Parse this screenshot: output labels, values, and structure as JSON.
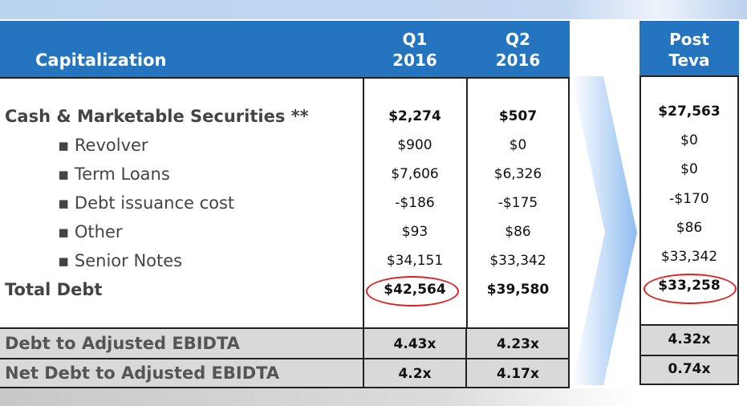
{
  "header": {
    "title": "Capitalization",
    "q1": [
      "Q1",
      "2016"
    ],
    "q2": [
      "Q2",
      "2016"
    ],
    "post": [
      "Post",
      "Teva"
    ]
  },
  "rows": [
    {
      "label": "Cash & Marketable Securities **",
      "q1": "$2,274",
      "q2": "$507",
      "post": "$27,563",
      "bold": true,
      "indent": false
    },
    {
      "label": "▪ Revolver",
      "q1": "$900",
      "q2": "$0",
      "post": "$0",
      "bold": false,
      "indent": true
    },
    {
      "label": "▪ Term Loans",
      "q1": "$7,606",
      "q2": "$6,326",
      "post": "$0",
      "bold": false,
      "indent": true
    },
    {
      "label": "▪ Debt issuance cost",
      "q1": "-$186",
      "q2": "-$175",
      "post": "-$170",
      "bold": false,
      "indent": true
    },
    {
      "label": "▪ Other",
      "q1": "$93",
      "q2": "$86",
      "post": "$86",
      "bold": false,
      "indent": true
    },
    {
      "label": "▪ Senior Notes",
      "q1": "$34,151",
      "q2": "$33,342",
      "post": "$33,342",
      "bold": false,
      "indent": true
    },
    {
      "label": "Total Debt",
      "q1": "$42,564",
      "q2": "$39,580",
      "post": "$33,258",
      "bold": true,
      "indent": false
    }
  ],
  "ratios": [
    {
      "label": "Debt to Adjusted EBIDTA",
      "q1": "4.43x",
      "q2": "4.23x",
      "post": "4.32x"
    },
    {
      "label": "Net Debt to Adjusted EBIDTA",
      "q1": "4.2x",
      "q2": "4.17x",
      "post": "0.74x"
    }
  ],
  "colors": {
    "header": "#2474c0",
    "highlight": "#e02020",
    "ratio_bg": "#d9d9d9"
  }
}
